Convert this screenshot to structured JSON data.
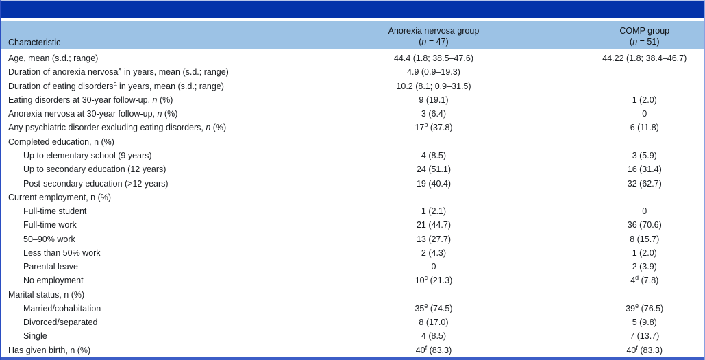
{
  "table": {
    "columns": {
      "characteristic": "Characteristic",
      "group1_line1": "Anorexia nervosa group",
      "group1_line2": "(*n* = 47)",
      "group2_line1": "COMP group",
      "group2_line2": "(*n* = 51)"
    },
    "rows": [
      {
        "label": "Age, mean (s.d.; range)",
        "group1": "44.4 (1.8; 38.5–47.6)",
        "group2": "44.22 (1.8; 38.4–46.7)",
        "indent": 0
      },
      {
        "label": "Duration of anorexia nervosa^a^ in years, mean (s.d.; range)",
        "group1": "4.9 (0.9–19.3)",
        "group2": "",
        "indent": 0
      },
      {
        "label": "Duration of eating disorders^a^ in years, mean (s.d.; range)",
        "group1": "10.2 (8.1; 0.9–31.5)",
        "group2": "",
        "indent": 0
      },
      {
        "label": "Eating disorders at 30-year follow-up, *n* (%)",
        "group1": "9 (19.1)",
        "group2": "1 (2.0)",
        "indent": 0
      },
      {
        "label": "Anorexia nervosa at 30-year follow-up, *n* (%)",
        "group1": "3 (6.4)",
        "group2": "0",
        "indent": 0
      },
      {
        "label": "Any psychiatric disorder excluding eating disorders, *n* (%)",
        "group1": "17^b^ (37.8)",
        "group2": "6 (11.8)",
        "indent": 0
      },
      {
        "label": "Completed education, n (%)",
        "group1": "",
        "group2": "",
        "indent": 0
      },
      {
        "label": "Up to elementary school (9 years)",
        "group1": "4 (8.5)",
        "group2": "3 (5.9)",
        "indent": 1
      },
      {
        "label": "Up to secondary education (12 years)",
        "group1": "24 (51.1)",
        "group2": "16 (31.4)",
        "indent": 1
      },
      {
        "label": "Post-secondary education (>12 years)",
        "group1": "19 (40.4)",
        "group2": "32 (62.7)",
        "indent": 1
      },
      {
        "label": "Current employment, n (%)",
        "group1": "",
        "group2": "",
        "indent": 0
      },
      {
        "label": "Full-time student",
        "group1": "1 (2.1)",
        "group2": "0",
        "indent": 1
      },
      {
        "label": "Full-time work",
        "group1": "21 (44.7)",
        "group2": "36 (70.6)",
        "indent": 1
      },
      {
        "label": "50–90% work",
        "group1": "13 (27.7)",
        "group2": "8 (15.7)",
        "indent": 1
      },
      {
        "label": "Less than 50% work",
        "group1": "2 (4.3)",
        "group2": "1 (2.0)",
        "indent": 1
      },
      {
        "label": "Parental leave",
        "group1": "0",
        "group2": "2 (3.9)",
        "indent": 1
      },
      {
        "label": "No employment",
        "group1": "10^c^ (21.3)",
        "group2": "4^d^ (7.8)",
        "indent": 1
      },
      {
        "label": "Marital status, n (%)",
        "group1": "",
        "group2": "",
        "indent": 0
      },
      {
        "label": "Married/cohabitation",
        "group1": "35^e^ (74.5)",
        "group2": "39^e^ (76.5)",
        "indent": 1
      },
      {
        "label": "Divorced/separated",
        "group1": "8 (17.0)",
        "group2": "5 (9.8)",
        "indent": 1
      },
      {
        "label": "Single",
        "group1": "4 (8.5)",
        "group2": "7 (13.7)",
        "indent": 1
      },
      {
        "label": "Has given birth, n (%)",
        "group1": "40^f^ (83.3)",
        "group2": "40^f^ (83.3)",
        "indent": 0
      }
    ]
  },
  "colors": {
    "top_bar": "#0433aa",
    "header_bg": "#9cc2e5",
    "border": "#3d5ec7",
    "text": "#1a1d21"
  }
}
